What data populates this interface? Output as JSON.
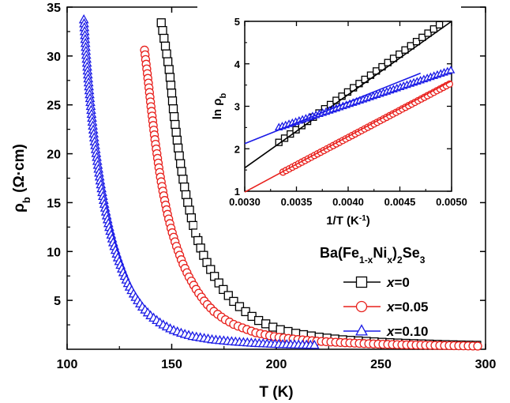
{
  "chart_data": [
    {
      "type": "line",
      "xlabel": {
        "main": "T (K)"
      },
      "ylabel": {
        "sym": "ρ",
        "sub": "b",
        "rest": " (Ω·cm)"
      },
      "xlim": [
        100,
        300
      ],
      "ylim": [
        0,
        35
      ],
      "xticks": [
        "100",
        "150",
        "200",
        "250",
        "300"
      ],
      "yticks": [
        "5",
        "10",
        "15",
        "20",
        "25",
        "30",
        "35"
      ],
      "legend": {
        "title": {
          "p1": "Ba(Fe",
          "s1": "1-x",
          "p2": "Ni",
          "s2": "x",
          "p3": ")",
          "s3": "2",
          "p4": "Se",
          "s4": "3"
        },
        "placement": "right"
      },
      "series": [
        {
          "name_var": "x",
          "name_rest": "=0",
          "color": "#000000",
          "marker": "square",
          "x": [
            145,
            147,
            149,
            151,
            153,
            155,
            157,
            160,
            163,
            166,
            170,
            175,
            180,
            185,
            190,
            195,
            200,
            210,
            220,
            230,
            240,
            250,
            260,
            270,
            280,
            290,
            298
          ],
          "y": [
            33.4,
            31.0,
            28.3,
            24.1,
            20.7,
            17.9,
            15.6,
            12.9,
            10.8,
            9.2,
            7.6,
            6.0,
            4.8,
            3.9,
            3.1,
            2.6,
            2.1,
            1.6,
            1.25,
            1.0,
            0.85,
            0.72,
            0.62,
            0.55,
            0.48,
            0.43,
            0.4
          ]
        },
        {
          "name_var": "x",
          "name_rest": "=0.05",
          "color": "#e8201c",
          "marker": "circle",
          "x": [
            137,
            138,
            139,
            140,
            141,
            142,
            143,
            144,
            145,
            146,
            148,
            150,
            152,
            155,
            158,
            162,
            166,
            170,
            175,
            180,
            190,
            200,
            210,
            220,
            230,
            240,
            250,
            260,
            270,
            280,
            290,
            298
          ],
          "y": [
            30.6,
            28.8,
            27.0,
            25.0,
            23.2,
            21.4,
            19.9,
            18.4,
            17.1,
            15.9,
            13.8,
            12.1,
            10.7,
            8.9,
            7.5,
            6.0,
            4.8,
            3.9,
            3.1,
            2.5,
            1.7,
            1.25,
            1.0,
            0.82,
            0.7,
            0.6,
            0.52,
            0.46,
            0.42,
            0.38,
            0.35,
            0.32
          ]
        },
        {
          "name_var": "x",
          "name_rest": "=0.10",
          "color": "#1a1ae6",
          "marker": "triangle",
          "x": [
            108,
            109,
            110,
            111,
            112,
            113,
            114,
            115,
            116,
            117,
            118,
            119,
            120,
            122,
            124,
            126,
            128,
            130,
            133,
            136,
            140,
            145,
            150,
            155,
            160,
            170,
            180,
            190,
            200,
            210,
            220
          ],
          "y": [
            33.7,
            30.5,
            27.9,
            25.5,
            23.4,
            21.5,
            19.9,
            18.4,
            17.0,
            15.8,
            14.6,
            13.6,
            12.6,
            10.9,
            9.5,
            8.3,
            7.2,
            6.3,
            5.2,
            4.3,
            3.4,
            2.6,
            2.0,
            1.6,
            1.3,
            0.95,
            0.75,
            0.6,
            0.5,
            0.44,
            0.4
          ]
        }
      ]
    },
    {
      "type": "scatter",
      "xlabel": {
        "main": "1/T (K",
        "sup": "-1",
        "close": ")"
      },
      "ylabel": {
        "main": "ln ρ",
        "sub": "b"
      },
      "xlim": [
        0.003,
        0.005
      ],
      "ylim": [
        1,
        5
      ],
      "xticks": [
        "0.0030",
        "0.0035",
        "0.0040",
        "0.0045",
        "0.0050"
      ],
      "yticks": [
        "1",
        "2",
        "3",
        "4",
        "5"
      ],
      "series": [
        {
          "color": "#000000",
          "marker": "square",
          "x_start": 0.00333,
          "x_end": 0.0049,
          "y_start": 2.15,
          "y_end": 4.95,
          "fit": {
            "x": [
              0.003,
              0.005
            ],
            "y": [
              1.55,
              5.0
            ]
          }
        },
        {
          "color": "#e8201c",
          "marker": "circle",
          "x_start": 0.00337,
          "x_end": 0.005,
          "y_start": 1.45,
          "y_end": 3.55,
          "fit": {
            "x": [
              0.003,
              0.005
            ],
            "y": [
              0.98,
              3.6
            ]
          }
        },
        {
          "color": "#1a1ae6",
          "marker": "triangle",
          "x_start": 0.00333,
          "x_end": 0.005,
          "y_start": 2.5,
          "y_end": 3.85,
          "fit": {
            "x": [
              0.003,
              0.0047
            ],
            "y": [
              2.12,
              3.78
            ]
          }
        }
      ]
    }
  ]
}
